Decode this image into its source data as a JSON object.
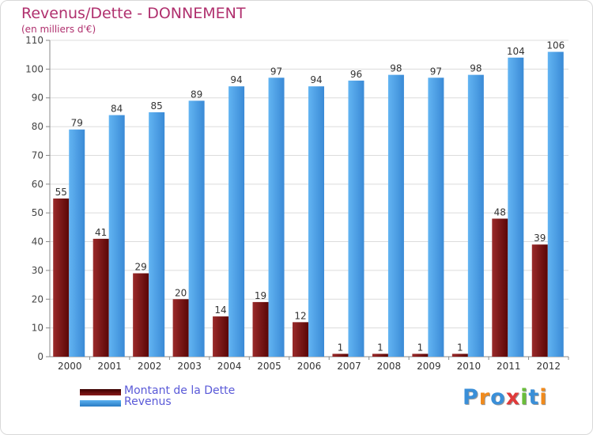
{
  "header": {
    "title": "Revenus/Dette - DONNEMENT",
    "subtitle": "(en milliers d'€)"
  },
  "legend": {
    "items": [
      {
        "label": "Montant de la Dette",
        "color": "#6b0a0a"
      },
      {
        "label": "Revenus",
        "color": "#4a9fe4"
      }
    ]
  },
  "brand": {
    "text": "Proxiti",
    "colors": [
      "#3a8fd8",
      "#f08a1c",
      "#3a8fd8",
      "#e03a3a",
      "#6abd3a",
      "#3a8fd8",
      "#f08a1c"
    ]
  },
  "chart_data": {
    "type": "bar",
    "title": "Revenus/Dette - DONNEMENT",
    "subtitle": "(en milliers d'€)",
    "categories": [
      "2000",
      "2001",
      "2002",
      "2003",
      "2004",
      "2005",
      "2006",
      "2007",
      "2008",
      "2009",
      "2010",
      "2011",
      "2012"
    ],
    "series": [
      {
        "name": "Montant de la Dette",
        "color": "#7a1414",
        "values": [
          55,
          41,
          29,
          20,
          14,
          19,
          12,
          1,
          1,
          1,
          1,
          48,
          39
        ]
      },
      {
        "name": "Revenus",
        "color": "#4a9fe4",
        "values": [
          79,
          84,
          85,
          89,
          94,
          97,
          94,
          96,
          98,
          97,
          98,
          104,
          106
        ]
      }
    ],
    "ylim": [
      0,
      110
    ],
    "yticks": [
      0,
      10,
      20,
      30,
      40,
      50,
      60,
      70,
      80,
      90,
      100,
      110
    ],
    "grid": true,
    "legend_position": "bottom-left"
  }
}
